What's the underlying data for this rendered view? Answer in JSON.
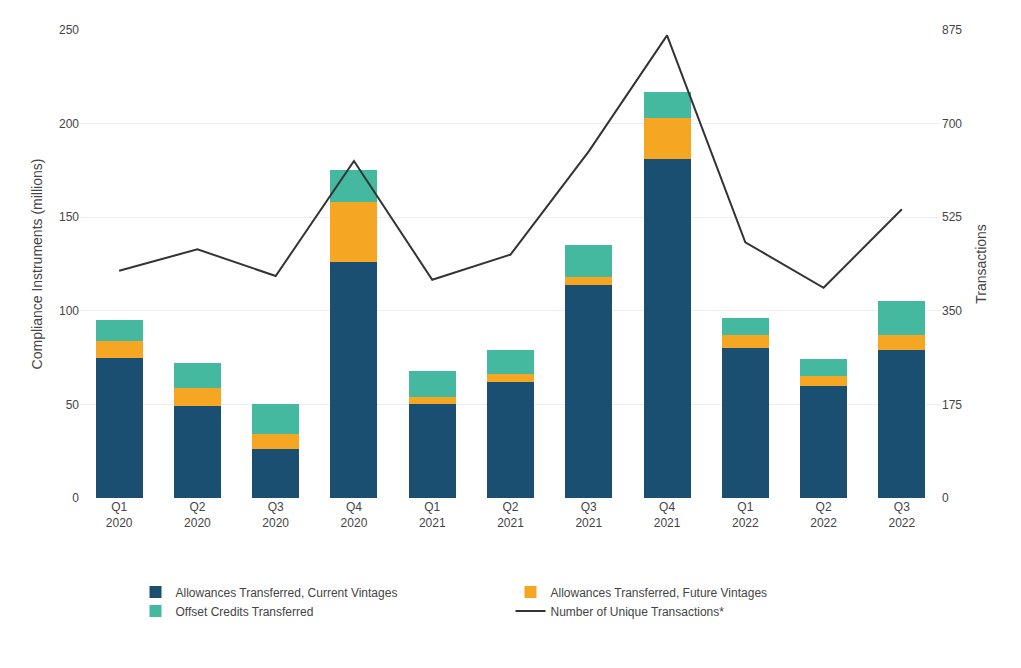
{
  "chart_data": {
    "type": "bar",
    "stacked": true,
    "categories": [
      "Q1\n2020",
      "Q2\n2020",
      "Q3\n2020",
      "Q4\n2020",
      "Q1\n2021",
      "Q2\n2021",
      "Q3\n2021",
      "Q4\n2021",
      "Q1\n2022",
      "Q2\n2022",
      "Q3\n2022"
    ],
    "series": [
      {
        "name": "Allowances Transferred, Current Vintages",
        "color": "#1b4f72",
        "values": [
          75,
          49,
          26,
          126,
          50,
          62,
          114,
          181,
          80,
          60,
          79
        ]
      },
      {
        "name": "Allowances Transferred, Future Vintages",
        "color": "#f5a623",
        "values": [
          9,
          10,
          8,
          32,
          4,
          4,
          4,
          22,
          7,
          5,
          8
        ]
      },
      {
        "name": "Offset Credits Transferred",
        "color": "#45b8a0",
        "values": [
          11,
          13,
          16,
          17,
          14,
          13,
          17,
          14,
          9,
          9,
          18
        ]
      },
      {
        "name": "Number of Unique Transactions*",
        "color": "#333333",
        "type": "line",
        "axis": "y2",
        "values": [
          425,
          465,
          415,
          630,
          408,
          455,
          648,
          865,
          478,
          393,
          540
        ]
      }
    ],
    "ylabel": "Compliance Instruments (millions)",
    "y2label": "Transactions",
    "ylim": [
      0,
      250
    ],
    "yticks": [
      0,
      50,
      100,
      150,
      200,
      250
    ],
    "y2lim": [
      0,
      875
    ],
    "y2ticks": [
      0,
      175,
      350,
      525,
      700,
      875
    ],
    "grid": true,
    "legend": "bottom"
  }
}
